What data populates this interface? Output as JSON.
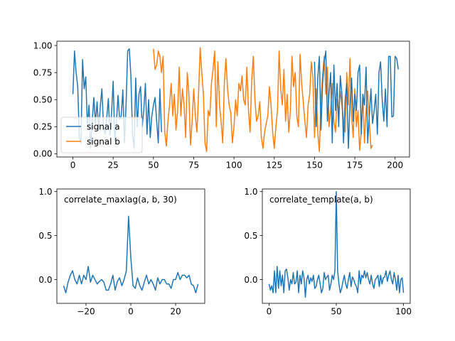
{
  "chart_data": [
    {
      "type": "line",
      "title": "",
      "xlabel": "",
      "ylabel": "",
      "xlim": [
        -9.95,
        208.95
      ],
      "ylim": [
        -0.03,
        1.04
      ],
      "xticks": [
        0,
        25,
        50,
        75,
        100,
        125,
        150,
        175,
        200
      ],
      "xtick_labels": [
        "0",
        "25",
        "50",
        "75",
        "100",
        "125",
        "150",
        "175",
        "200"
      ],
      "yticks": [
        0,
        0.25,
        0.5,
        0.75,
        1.0
      ],
      "ytick_labels": [
        "0.00",
        "0.25",
        "0.50",
        "0.75",
        "1.00"
      ],
      "legend": "lower-left",
      "grid": false,
      "series": [
        {
          "name": "signal a",
          "color": "#1f77b4",
          "x_start": 0,
          "values": [
            0.55,
            0.95,
            0.75,
            0.62,
            0.15,
            0.1,
            0.87,
            0.6,
            0.71,
            0.25,
            0.45,
            0.05,
            0.3,
            0.52,
            0.28,
            0.48,
            0.21,
            0.44,
            0.6,
            0.25,
            0.18,
            0.33,
            0.51,
            0.17,
            0.38,
            0.67,
            0.12,
            0.28,
            0.54,
            0.32,
            0.35,
            0.59,
            0.1,
            0.45,
            0.95,
            0.97,
            0.72,
            0.18,
            0.05,
            0.7,
            0.25,
            0.55,
            0.62,
            0.25,
            0.4,
            0.65,
            0.18,
            0.5,
            0.15,
            0.35,
            0.45,
            0.52,
            0.3,
            0.1,
            0.6,
            0.2
          ]
        },
        {
          "name": "signal b",
          "color": "#ff7f0e",
          "x_start": 50,
          "values": [
            0.97,
            0.78,
            0.82,
            0.95,
            0.9,
            0.75,
            0.9,
            0.2,
            0.07,
            0.3,
            0.45,
            0.65,
            0.35,
            0.55,
            0.22,
            0.4,
            0.8,
            0.35,
            0.6,
            0.45,
            0.15,
            0.75,
            0.55,
            0.08,
            0.3,
            0.6,
            0.35,
            0.2,
            0.55,
            0.98,
            0.75,
            0.55,
            0.1,
            0.02,
            0.4,
            0.35,
            0.65,
            0.78,
            0.95,
            0.25,
            0.85,
            0.45,
            0.3,
            0.1,
            0.65,
            0.88,
            0.6,
            0.45,
            0.38,
            0.1,
            0.25,
            0.5,
            0.35,
            0.65,
            0.58,
            0.72,
            0.5,
            0.45,
            0.8,
            0.4,
            0.2,
            0.68,
            0.9,
            0.5,
            0.3,
            0.35,
            0.48,
            0.15,
            0.05,
            0.2,
            0.28,
            0.35,
            0.62,
            0.45,
            0.2,
            0.05,
            0.25,
            0.4,
            0.95,
            0.6,
            0.45,
            0.78,
            0.3,
            0.55,
            0.2,
            0.4,
            0.9,
            0.62,
            0.75,
            0.35,
            0.25,
            0.92,
            0.65,
            0.48,
            0.3,
            0.15,
            0.45,
            0.55,
            0.85,
            0.7,
            0.15,
            0.6,
            0.2,
            0.02,
            0.5,
            0.72,
            0.9,
            0.55,
            0.8,
            0.25,
            0.4,
            0.65,
            0.3,
            0.2,
            0.5,
            0.38,
            0.58,
            0.45,
            0.3,
            0.2,
            0.75,
            0.45,
            0.88,
            0.35,
            0.15,
            0.6,
            0.25,
            0.4,
            0.03,
            0.2,
            0.55,
            0.1,
            0.4,
            0.58,
            0.3,
            0.05,
            0.08
          ]
        },
        {
          "name": "",
          "color": "#1f77b4",
          "x_start": 150,
          "values": [
            0.85,
            0.25,
            0.7,
            0.9,
            0.22,
            0.65,
            0.85,
            0.95,
            0.3,
            0.55,
            0.75,
            0.1,
            0.82,
            0.4,
            0.65,
            0.25,
            0.72,
            0.55,
            0.1,
            0.5,
            0.65,
            0.05,
            0.45,
            0.7,
            0.3,
            0.55,
            0.4,
            0.75,
            0.82,
            0.18,
            0.55,
            0.45,
            0.8,
            0.1,
            0.35,
            0.6,
            0.28,
            0.4,
            0.55,
            0.18,
            0.75,
            0.85,
            0.5,
            0.3,
            0.6,
            0.25,
            0.9,
            0.9,
            0.34,
            0.35,
            0.9,
            0.88,
            0.78
          ]
        }
      ]
    },
    {
      "type": "line",
      "title": "correlate_maxlag(a, b, 30)",
      "xlabel": "",
      "ylabel": "",
      "xlim": [
        -33,
        33
      ],
      "ylim": [
        -0.27,
        1.03
      ],
      "xticks": [
        -20,
        0,
        20
      ],
      "xtick_labels": [
        "−20",
        "0",
        "20"
      ],
      "yticks": [
        0,
        0.5,
        1.0
      ],
      "ytick_labels": [
        "0.0",
        "0.5",
        "1.0"
      ],
      "series": [
        {
          "color": "#1f77b4",
          "x_start": -30,
          "values": [
            -0.07,
            -0.15,
            -0.03,
            0.05,
            0.1,
            0.0,
            -0.05,
            0.05,
            -0.05,
            0.05,
            0.0,
            0.15,
            -0.03,
            0.05,
            0.0,
            -0.05,
            -0.02,
            0.0,
            -0.03,
            -0.12,
            -0.12,
            -0.05,
            0.05,
            -0.12,
            -0.02,
            0.02,
            -0.07,
            0.0,
            0.1,
            0.72,
            0.25,
            -0.07,
            -0.1,
            0.02,
            -0.07,
            -0.12,
            -0.03,
            0.05,
            -0.05,
            0.0,
            -0.05,
            -0.12,
            0.02,
            -0.05,
            0.0,
            0.0,
            -0.05,
            -0.05,
            -0.1,
            0.0,
            0.0,
            0.08,
            0.0,
            0.05,
            0.05,
            0.02,
            0.05,
            -0.05,
            -0.07,
            -0.15,
            -0.05
          ]
        }
      ]
    },
    {
      "type": "line",
      "title": "correlate_template(a, b)",
      "xlabel": "",
      "ylabel": "",
      "xlim": [
        -5,
        105
      ],
      "ylim": [
        -0.27,
        1.03
      ],
      "xticks": [
        0,
        50,
        100
      ],
      "xtick_labels": [
        "0",
        "50",
        "100"
      ],
      "yticks": [
        0,
        0.5,
        1.0
      ],
      "ytick_labels": [
        "0.0",
        "0.5",
        "1.0"
      ],
      "series": [
        {
          "color": "#1f77b4",
          "x_start": 0,
          "values": [
            -0.05,
            -0.12,
            -0.07,
            -0.15,
            0.1,
            -0.15,
            0.15,
            -0.1,
            0.1,
            -0.07,
            0.05,
            -0.15,
            0.1,
            0.12,
            0.02,
            -0.12,
            0.0,
            -0.05,
            0.08,
            -0.05,
            -0.03,
            0.1,
            -0.15,
            0.05,
            -0.05,
            0.1,
            0.02,
            -0.2,
            0.0,
            0.05,
            -0.05,
            0.02,
            -0.02,
            0.05,
            -0.1,
            -0.08,
            0.0,
            0.05,
            -0.05,
            -0.15,
            -0.1,
            0.08,
            0.0,
            0.03,
            0.05,
            -0.12,
            -0.05,
            0.05,
            0.0,
            0.1,
            1.0,
            0.1,
            -0.05,
            -0.15,
            -0.1,
            -0.02,
            0.05,
            -0.05,
            -0.1,
            0.0,
            0.08,
            -0.08,
            0.03,
            0.0,
            -0.05,
            -0.08,
            -0.15,
            0.1,
            -0.05,
            0.05,
            0.02,
            0.1,
            0.02,
            0.08,
            0.0,
            -0.05,
            0.05,
            -0.05,
            -0.1,
            0.0,
            0.02,
            0.05,
            -0.08,
            0.05,
            -0.05,
            0.02,
            0.03,
            0.1,
            -0.02,
            0.05,
            0.1,
            0.0,
            -0.05,
            0.08,
            0.0,
            -0.12,
            0.05,
            -0.15,
            0.0,
            0.02,
            -0.15
          ]
        }
      ]
    }
  ]
}
